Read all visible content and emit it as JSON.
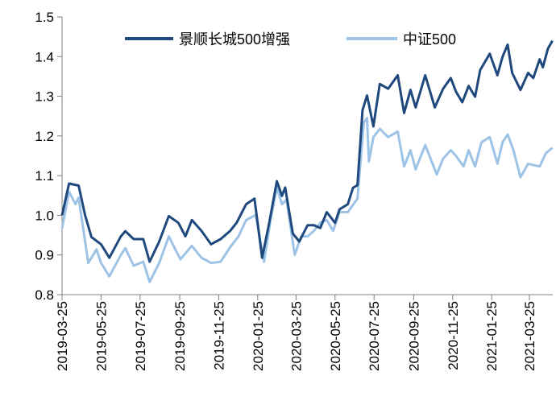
{
  "chart_data": {
    "type": "line",
    "title": "",
    "xlabel": "",
    "ylabel": "",
    "ylim": [
      0.8,
      1.5
    ],
    "yticks": [
      "0.8",
      "0.9",
      "1.0",
      "1.1",
      "1.2",
      "1.3",
      "1.4",
      "1.5"
    ],
    "xlim": [
      "2019-03-25",
      "2021-04-30"
    ],
    "xticks": [
      "2019-03-25",
      "2019-05-25",
      "2019-07-25",
      "2019-09-25",
      "2019-11-25",
      "2020-01-25",
      "2020-03-25",
      "2020-05-25",
      "2020-07-25",
      "2020-09-25",
      "2020-11-25",
      "2021-01-25",
      "2021-03-25"
    ],
    "grid": false,
    "legend_position": "top",
    "series": [
      {
        "name": "景顺长城500增强",
        "color": "#1f497d",
        "points": [
          [
            "2019-03-25",
            1.0
          ],
          [
            "2019-04-05",
            1.08
          ],
          [
            "2019-04-20",
            1.075
          ],
          [
            "2019-04-30",
            1.0
          ],
          [
            "2019-05-10",
            0.945
          ],
          [
            "2019-05-25",
            0.927
          ],
          [
            "2019-06-07",
            0.893
          ],
          [
            "2019-06-25",
            0.947
          ],
          [
            "2019-07-02",
            0.96
          ],
          [
            "2019-07-15",
            0.94
          ],
          [
            "2019-07-30",
            0.94
          ],
          [
            "2019-08-09",
            0.883
          ],
          [
            "2019-08-24",
            0.934
          ],
          [
            "2019-09-08",
            0.998
          ],
          [
            "2019-09-23",
            0.981
          ],
          [
            "2019-10-04",
            0.947
          ],
          [
            "2019-10-14",
            0.988
          ],
          [
            "2019-10-29",
            0.961
          ],
          [
            "2019-11-13",
            0.927
          ],
          [
            "2019-11-28",
            0.94
          ],
          [
            "2019-12-13",
            0.961
          ],
          [
            "2019-12-23",
            0.981
          ],
          [
            "2020-01-07",
            1.028
          ],
          [
            "2020-01-20",
            1.042
          ],
          [
            "2020-02-01",
            0.893
          ],
          [
            "2020-02-12",
            0.981
          ],
          [
            "2020-02-24",
            1.086
          ],
          [
            "2020-03-03",
            1.049
          ],
          [
            "2020-03-08",
            1.07
          ],
          [
            "2020-03-20",
            0.954
          ],
          [
            "2020-03-30",
            0.934
          ],
          [
            "2020-04-12",
            0.975
          ],
          [
            "2020-04-22",
            0.975
          ],
          [
            "2020-05-02",
            0.968
          ],
          [
            "2020-05-12",
            1.008
          ],
          [
            "2020-05-25",
            0.981
          ],
          [
            "2020-06-01",
            1.015
          ],
          [
            "2020-06-14",
            1.028
          ],
          [
            "2020-06-22",
            1.069
          ],
          [
            "2020-06-29",
            1.076
          ],
          [
            "2020-07-07",
            1.265
          ],
          [
            "2020-07-14",
            1.302
          ],
          [
            "2020-07-24",
            1.224
          ],
          [
            "2020-08-03",
            1.331
          ],
          [
            "2020-08-16",
            1.319
          ],
          [
            "2020-08-31",
            1.353
          ],
          [
            "2020-09-10",
            1.258
          ],
          [
            "2020-09-20",
            1.316
          ],
          [
            "2020-09-28",
            1.272
          ],
          [
            "2020-10-13",
            1.353
          ],
          [
            "2020-10-28",
            1.272
          ],
          [
            "2020-11-10",
            1.319
          ],
          [
            "2020-11-22",
            1.346
          ],
          [
            "2020-11-30",
            1.312
          ],
          [
            "2020-12-10",
            1.285
          ],
          [
            "2020-12-20",
            1.326
          ],
          [
            "2020-12-30",
            1.299
          ],
          [
            "2021-01-07",
            1.366
          ],
          [
            "2021-01-22",
            1.407
          ],
          [
            "2021-02-03",
            1.353
          ],
          [
            "2021-02-11",
            1.4
          ],
          [
            "2021-02-19",
            1.43
          ],
          [
            "2021-02-26",
            1.359
          ],
          [
            "2021-03-11",
            1.316
          ],
          [
            "2021-03-23",
            1.359
          ],
          [
            "2021-03-31",
            1.346
          ],
          [
            "2021-04-10",
            1.393
          ],
          [
            "2021-04-15",
            1.373
          ],
          [
            "2021-04-23",
            1.42
          ],
          [
            "2021-04-30",
            1.44
          ]
        ]
      },
      {
        "name": "中证500",
        "color": "#9dc3e6",
        "points": [
          [
            "2019-03-25",
            0.967
          ],
          [
            "2019-04-05",
            1.059
          ],
          [
            "2019-04-15",
            1.028
          ],
          [
            "2019-04-20",
            1.045
          ],
          [
            "2019-05-05",
            0.88
          ],
          [
            "2019-05-18",
            0.914
          ],
          [
            "2019-05-25",
            0.88
          ],
          [
            "2019-06-07",
            0.846
          ],
          [
            "2019-06-25",
            0.9
          ],
          [
            "2019-07-02",
            0.917
          ],
          [
            "2019-07-15",
            0.873
          ],
          [
            "2019-07-30",
            0.883
          ],
          [
            "2019-08-09",
            0.832
          ],
          [
            "2019-08-24",
            0.88
          ],
          [
            "2019-09-08",
            0.947
          ],
          [
            "2019-09-26",
            0.889
          ],
          [
            "2019-10-14",
            0.923
          ],
          [
            "2019-10-29",
            0.893
          ],
          [
            "2019-11-13",
            0.88
          ],
          [
            "2019-11-28",
            0.883
          ],
          [
            "2019-12-13",
            0.92
          ],
          [
            "2019-12-26",
            0.947
          ],
          [
            "2020-01-07",
            0.988
          ],
          [
            "2020-01-22",
            1.001
          ],
          [
            "2020-02-04",
            0.883
          ],
          [
            "2020-02-14",
            0.988
          ],
          [
            "2020-02-24",
            1.07
          ],
          [
            "2020-03-03",
            1.028
          ],
          [
            "2020-03-10",
            1.039
          ],
          [
            "2020-03-23",
            0.9
          ],
          [
            "2020-04-02",
            0.947
          ],
          [
            "2020-04-12",
            0.947
          ],
          [
            "2020-04-22",
            0.961
          ],
          [
            "2020-05-02",
            0.981
          ],
          [
            "2020-05-12",
            0.988
          ],
          [
            "2020-05-22",
            0.961
          ],
          [
            "2020-06-01",
            1.008
          ],
          [
            "2020-06-14",
            1.008
          ],
          [
            "2020-06-29",
            1.042
          ],
          [
            "2020-07-09",
            1.234
          ],
          [
            "2020-07-14",
            1.245
          ],
          [
            "2020-07-17",
            1.136
          ],
          [
            "2020-07-24",
            1.197
          ],
          [
            "2020-08-03",
            1.218
          ],
          [
            "2020-08-16",
            1.197
          ],
          [
            "2020-08-31",
            1.211
          ],
          [
            "2020-09-10",
            1.123
          ],
          [
            "2020-09-20",
            1.164
          ],
          [
            "2020-09-28",
            1.116
          ],
          [
            "2020-10-13",
            1.177
          ],
          [
            "2020-10-31",
            1.103
          ],
          [
            "2020-11-10",
            1.143
          ],
          [
            "2020-11-22",
            1.164
          ],
          [
            "2020-11-30",
            1.15
          ],
          [
            "2020-12-12",
            1.123
          ],
          [
            "2020-12-20",
            1.164
          ],
          [
            "2020-12-30",
            1.123
          ],
          [
            "2021-01-09",
            1.184
          ],
          [
            "2021-01-22",
            1.197
          ],
          [
            "2021-02-03",
            1.13
          ],
          [
            "2021-02-11",
            1.184
          ],
          [
            "2021-02-19",
            1.204
          ],
          [
            "2021-02-28",
            1.164
          ],
          [
            "2021-03-11",
            1.096
          ],
          [
            "2021-03-23",
            1.13
          ],
          [
            "2021-04-10",
            1.123
          ],
          [
            "2021-04-20",
            1.157
          ],
          [
            "2021-04-30",
            1.17
          ]
        ]
      }
    ]
  }
}
